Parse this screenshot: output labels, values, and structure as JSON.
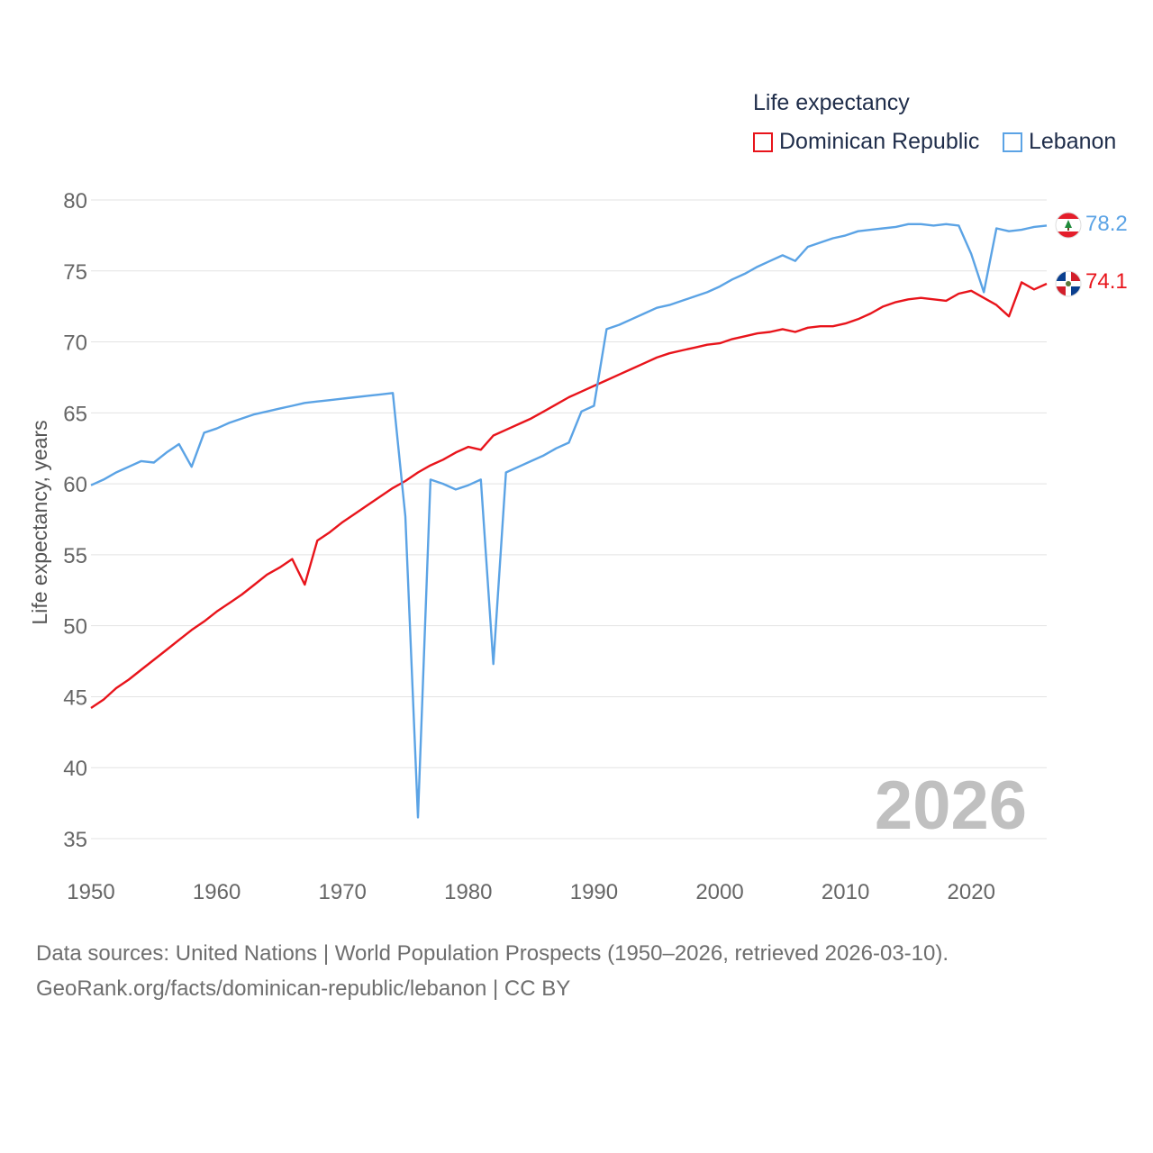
{
  "legend": {
    "title": "Life expectancy",
    "items": [
      {
        "label": "Dominican Republic",
        "color": "#e8141b"
      },
      {
        "label": "Lebanon",
        "color": "#5ba3e5"
      }
    ]
  },
  "year_watermark": "2026",
  "footer": {
    "line1": "Data sources: United Nations | World Population Prospects (1950–2026, retrieved 2026-03-10).",
    "line2": "GeoRank.org/facts/dominican-republic/lebanon | CC BY"
  },
  "end_labels": {
    "lebanon": "78.2",
    "dominican_republic": "74.1"
  },
  "chart_data": {
    "type": "line",
    "title": "Life expectancy",
    "xlabel": "",
    "ylabel": "Life expectancy, years",
    "xlim": [
      1950,
      2026
    ],
    "ylim": [
      35,
      81
    ],
    "x_ticks": [
      "1950",
      "1960",
      "1970",
      "1980",
      "1990",
      "2000",
      "2010",
      "2020"
    ],
    "y_ticks": [
      "35",
      "40",
      "45",
      "50",
      "55",
      "60",
      "65",
      "70",
      "75",
      "80"
    ],
    "grid": true,
    "legend_position": "top-right",
    "series": [
      {
        "name": "Dominican Republic",
        "color": "#e8141b",
        "points": [
          [
            1950,
            44.2
          ],
          [
            1951,
            44.8
          ],
          [
            1952,
            45.6
          ],
          [
            1953,
            46.2
          ],
          [
            1954,
            46.9
          ],
          [
            1955,
            47.6
          ],
          [
            1956,
            48.3
          ],
          [
            1957,
            49.0
          ],
          [
            1958,
            49.7
          ],
          [
            1959,
            50.3
          ],
          [
            1960,
            51.0
          ],
          [
            1961,
            51.6
          ],
          [
            1962,
            52.2
          ],
          [
            1963,
            52.9
          ],
          [
            1964,
            53.6
          ],
          [
            1965,
            54.1
          ],
          [
            1966,
            54.7
          ],
          [
            1967,
            52.9
          ],
          [
            1968,
            56.0
          ],
          [
            1969,
            56.6
          ],
          [
            1970,
            57.3
          ],
          [
            1971,
            57.9
          ],
          [
            1972,
            58.5
          ],
          [
            1973,
            59.1
          ],
          [
            1974,
            59.7
          ],
          [
            1975,
            60.2
          ],
          [
            1976,
            60.8
          ],
          [
            1977,
            61.3
          ],
          [
            1978,
            61.7
          ],
          [
            1979,
            62.2
          ],
          [
            1980,
            62.6
          ],
          [
            1981,
            62.4
          ],
          [
            1982,
            63.4
          ],
          [
            1983,
            63.8
          ],
          [
            1984,
            64.2
          ],
          [
            1985,
            64.6
          ],
          [
            1986,
            65.1
          ],
          [
            1987,
            65.6
          ],
          [
            1988,
            66.1
          ],
          [
            1989,
            66.5
          ],
          [
            1990,
            66.9
          ],
          [
            1991,
            67.3
          ],
          [
            1992,
            67.7
          ],
          [
            1993,
            68.1
          ],
          [
            1994,
            68.5
          ],
          [
            1995,
            68.9
          ],
          [
            1996,
            69.2
          ],
          [
            1997,
            69.4
          ],
          [
            1998,
            69.6
          ],
          [
            1999,
            69.8
          ],
          [
            2000,
            69.9
          ],
          [
            2001,
            70.2
          ],
          [
            2002,
            70.4
          ],
          [
            2003,
            70.6
          ],
          [
            2004,
            70.7
          ],
          [
            2005,
            70.9
          ],
          [
            2006,
            70.7
          ],
          [
            2007,
            71.0
          ],
          [
            2008,
            71.1
          ],
          [
            2009,
            71.1
          ],
          [
            2010,
            71.3
          ],
          [
            2011,
            71.6
          ],
          [
            2012,
            72.0
          ],
          [
            2013,
            72.5
          ],
          [
            2014,
            72.8
          ],
          [
            2015,
            73.0
          ],
          [
            2016,
            73.1
          ],
          [
            2017,
            73.0
          ],
          [
            2018,
            72.9
          ],
          [
            2019,
            73.4
          ],
          [
            2020,
            73.6
          ],
          [
            2021,
            73.1
          ],
          [
            2022,
            72.6
          ],
          [
            2023,
            71.8
          ],
          [
            2024,
            74.2
          ],
          [
            2025,
            73.7
          ],
          [
            2026,
            74.1
          ]
        ]
      },
      {
        "name": "Lebanon",
        "color": "#5ba3e5",
        "points": [
          [
            1950,
            59.9
          ],
          [
            1951,
            60.3
          ],
          [
            1952,
            60.8
          ],
          [
            1953,
            61.2
          ],
          [
            1954,
            61.6
          ],
          [
            1955,
            61.5
          ],
          [
            1956,
            62.2
          ],
          [
            1957,
            62.8
          ],
          [
            1958,
            61.2
          ],
          [
            1959,
            63.6
          ],
          [
            1960,
            63.9
          ],
          [
            1961,
            64.3
          ],
          [
            1962,
            64.6
          ],
          [
            1963,
            64.9
          ],
          [
            1964,
            65.1
          ],
          [
            1965,
            65.3
          ],
          [
            1966,
            65.5
          ],
          [
            1967,
            65.7
          ],
          [
            1968,
            65.8
          ],
          [
            1969,
            65.9
          ],
          [
            1970,
            66.0
          ],
          [
            1971,
            66.1
          ],
          [
            1972,
            66.2
          ],
          [
            1973,
            66.3
          ],
          [
            1974,
            66.4
          ],
          [
            1975,
            57.7
          ],
          [
            1976,
            36.5
          ],
          [
            1977,
            60.3
          ],
          [
            1978,
            60.0
          ],
          [
            1979,
            59.6
          ],
          [
            1980,
            59.9
          ],
          [
            1981,
            60.3
          ],
          [
            1982,
            47.3
          ],
          [
            1983,
            60.8
          ],
          [
            1984,
            61.2
          ],
          [
            1985,
            61.6
          ],
          [
            1986,
            62.0
          ],
          [
            1987,
            62.5
          ],
          [
            1988,
            62.9
          ],
          [
            1989,
            65.1
          ],
          [
            1990,
            65.5
          ],
          [
            1991,
            70.9
          ],
          [
            1992,
            71.2
          ],
          [
            1993,
            71.6
          ],
          [
            1994,
            72.0
          ],
          [
            1995,
            72.4
          ],
          [
            1996,
            72.6
          ],
          [
            1997,
            72.9
          ],
          [
            1998,
            73.2
          ],
          [
            1999,
            73.5
          ],
          [
            2000,
            73.9
          ],
          [
            2001,
            74.4
          ],
          [
            2002,
            74.8
          ],
          [
            2003,
            75.3
          ],
          [
            2004,
            75.7
          ],
          [
            2005,
            76.1
          ],
          [
            2006,
            75.7
          ],
          [
            2007,
            76.7
          ],
          [
            2008,
            77.0
          ],
          [
            2009,
            77.3
          ],
          [
            2010,
            77.5
          ],
          [
            2011,
            77.8
          ],
          [
            2012,
            77.9
          ],
          [
            2013,
            78.0
          ],
          [
            2014,
            78.1
          ],
          [
            2015,
            78.3
          ],
          [
            2016,
            78.3
          ],
          [
            2017,
            78.2
          ],
          [
            2018,
            78.3
          ],
          [
            2019,
            78.2
          ],
          [
            2020,
            76.2
          ],
          [
            2021,
            73.5
          ],
          [
            2022,
            78.0
          ],
          [
            2023,
            77.8
          ],
          [
            2024,
            77.9
          ],
          [
            2025,
            78.1
          ],
          [
            2026,
            78.2
          ]
        ]
      }
    ]
  }
}
